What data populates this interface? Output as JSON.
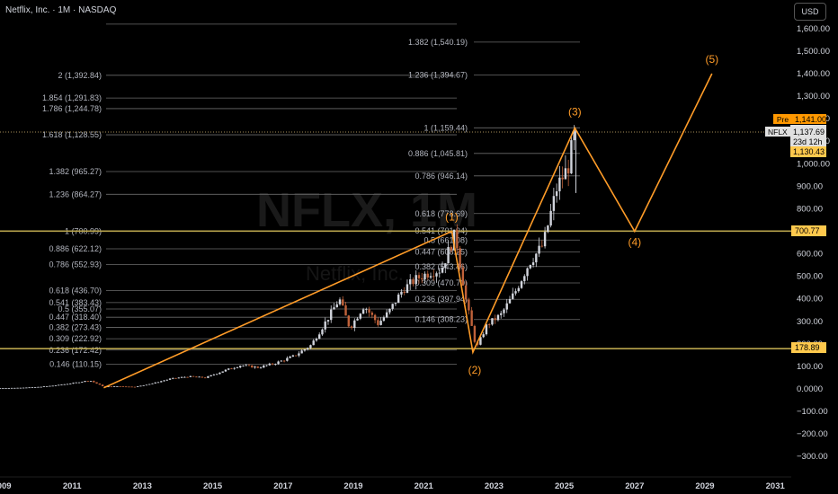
{
  "header": {
    "title": "Netflix, Inc. · 1M · NASDAQ",
    "currency_button": "USD"
  },
  "watermark": {
    "symbol": "NFLX, 1M",
    "name": "Netflix, Inc."
  },
  "price_tags": {
    "pre_label": "Pre",
    "pre_value": "1,141.00",
    "symbol": "NFLX",
    "last": "1,137.69",
    "countdown": "23d 12h",
    "low": "1,130.43",
    "level_700": "700.77",
    "level_178": "178.89"
  },
  "colors": {
    "background": "#000000",
    "wave": "#ff9c28",
    "fib": "#6b6b6b",
    "level_line": "#b8a44c",
    "up_candle": "#d1d4dc",
    "down_candle": "#c0623a",
    "pre_tag": "#ff9800",
    "low_tag": "#ffc94d"
  },
  "chart_data": {
    "type": "candlestick",
    "title": "Netflix, Inc. · 1M · NASDAQ",
    "y_axis_ticks": [
      "1,600.00",
      "1,500.00",
      "1,400.00",
      "1,300.00",
      "1,200.00",
      "1,100.00",
      "1,000.00",
      "900.00",
      "800.00",
      "700.00",
      "600.00",
      "500.00",
      "400.00",
      "300.00",
      "200.00",
      "100.00",
      "0.0000",
      "−100.00",
      "−200.00",
      "−300.00"
    ],
    "y_tick_values": [
      1600,
      1500,
      1400,
      1300,
      1200,
      1100,
      1000,
      900,
      800,
      700,
      600,
      500,
      400,
      300,
      200,
      100,
      0,
      -100,
      -200,
      -300
    ],
    "x_axis_ticks": [
      "2009",
      "2011",
      "2013",
      "2015",
      "2017",
      "2019",
      "2021",
      "2023",
      "2025",
      "2027",
      "2029",
      "2031"
    ],
    "x_tick_years": [
      2009,
      2011,
      2013,
      2015,
      2017,
      2019,
      2021,
      2023,
      2025,
      2027,
      2029,
      2031
    ],
    "ylim": [
      -340,
      1680
    ],
    "xlim": [
      2009,
      2031.5
    ],
    "horizontal_levels": [
      1141.0,
      700.77,
      178.89
    ],
    "fib_left": [
      {
        "label": "2 (1,392.84)",
        "value": 1392.84
      },
      {
        "label": "1.854 (1,291.83)",
        "value": 1291.83
      },
      {
        "label": "1.786 (1,244.78)",
        "value": 1244.78
      },
      {
        "label": "1.618 (1,128.55)",
        "value": 1128.55
      },
      {
        "label": "1.382 (965.27)",
        "value": 965.27
      },
      {
        "label": "1.236 (864.27)",
        "value": 864.27
      },
      {
        "label": "1 (700.99)",
        "value": 700.99
      },
      {
        "label": "0.886 (622.12)",
        "value": 622.12
      },
      {
        "label": "0.786 (552.93)",
        "value": 552.93
      },
      {
        "label": "0.618 (436.70)",
        "value": 436.7
      },
      {
        "label": "0.541 (383.43)",
        "value": 383.43
      },
      {
        "label": "0.5 (355.07)",
        "value": 355.07
      },
      {
        "label": "0.447 (318.40)",
        "value": 318.4
      },
      {
        "label": "0.382 (273.43)",
        "value": 273.43
      },
      {
        "label": "0.309 (222.92)",
        "value": 222.92
      },
      {
        "label": "0.236 (172.42)",
        "value": 172.42
      },
      {
        "label": "0.146 (110.15)",
        "value": 110.15
      }
    ],
    "fib_right": [
      {
        "label": "1.382 (1,540.19)",
        "value": 1540.19
      },
      {
        "label": "1.236 (1,394.67)",
        "value": 1394.67
      },
      {
        "label": "1 (1,159.44)",
        "value": 1159.44
      },
      {
        "label": "0.886 (1,045.81)",
        "value": 1045.81
      },
      {
        "label": "0.786 (946.14)",
        "value": 946.14
      },
      {
        "label": "0.618 (778.69)",
        "value": 778.69
      },
      {
        "label": "0.541 (701.94)",
        "value": 701.94
      },
      {
        "label": "0.5 (661.08)",
        "value": 661.08
      },
      {
        "label": "0.447 (608.25)",
        "value": 608.25
      },
      {
        "label": "0.382 (543.46)",
        "value": 543.46
      },
      {
        "label": "0.309 (470.70)",
        "value": 470.7
      },
      {
        "label": "0.236 (397.94)",
        "value": 397.94
      },
      {
        "label": "0.146 (308.23)",
        "value": 308.23
      }
    ],
    "wave_points": [
      {
        "label": "",
        "year": 2011.9,
        "value": 5
      },
      {
        "label": "(1)",
        "year": 2021.8,
        "value": 700
      },
      {
        "label": "(2)",
        "year": 2022.4,
        "value": 163
      },
      {
        "label": "(3)",
        "year": 2025.3,
        "value": 1159
      },
      {
        "label": "(4)",
        "year": 2027.0,
        "value": 700
      },
      {
        "label": "(5)",
        "year": 2029.2,
        "value": 1400
      }
    ],
    "price_path": [
      [
        2008.9,
        3
      ],
      [
        2009.5,
        5
      ],
      [
        2010.0,
        8
      ],
      [
        2010.5,
        15
      ],
      [
        2011.0,
        25
      ],
      [
        2011.5,
        38
      ],
      [
        2011.9,
        10
      ],
      [
        2012.3,
        12
      ],
      [
        2012.8,
        9
      ],
      [
        2013.3,
        25
      ],
      [
        2013.8,
        45
      ],
      [
        2014.3,
        55
      ],
      [
        2014.8,
        50
      ],
      [
        2015.3,
        80
      ],
      [
        2015.8,
        105
      ],
      [
        2016.3,
        95
      ],
      [
        2016.8,
        115
      ],
      [
        2017.3,
        145
      ],
      [
        2017.8,
        195
      ],
      [
        2018.3,
        320
      ],
      [
        2018.6,
        400
      ],
      [
        2018.9,
        270
      ],
      [
        2019.3,
        370
      ],
      [
        2019.7,
        290
      ],
      [
        2020.0,
        340
      ],
      [
        2020.4,
        440
      ],
      [
        2020.8,
        490
      ],
      [
        2021.2,
        520
      ],
      [
        2021.5,
        530
      ],
      [
        2021.9,
        690
      ],
      [
        2022.2,
        395
      ],
      [
        2022.5,
        180
      ],
      [
        2022.8,
        285
      ],
      [
        2023.2,
        330
      ],
      [
        2023.6,
        430
      ],
      [
        2024.0,
        560
      ],
      [
        2024.4,
        640
      ],
      [
        2024.8,
        900
      ],
      [
        2025.1,
        980
      ],
      [
        2025.3,
        1137
      ]
    ]
  }
}
